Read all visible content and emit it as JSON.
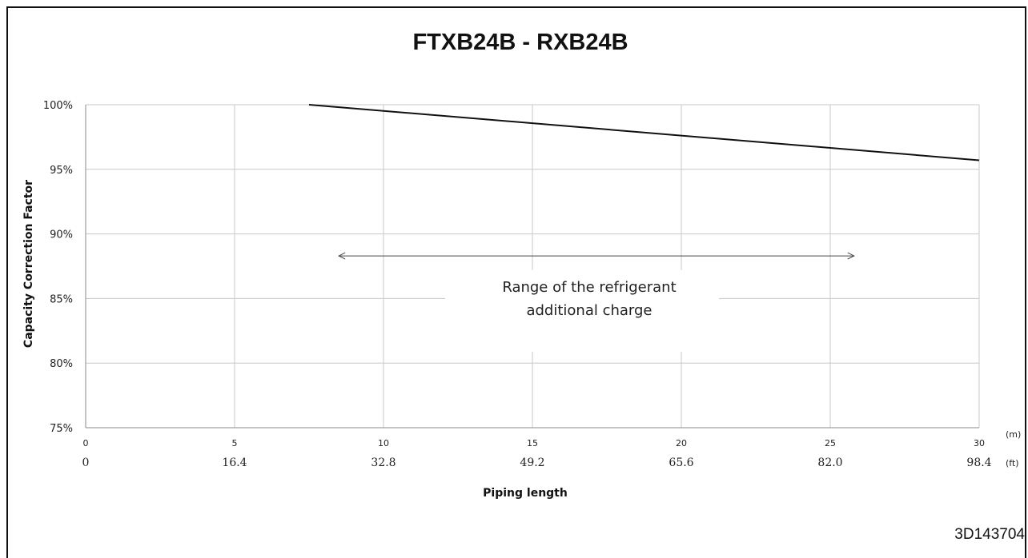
{
  "chart_data": {
    "type": "line",
    "title": "FTXB24B - RXB24B",
    "ylabel": "Capacity Correction Factor",
    "xlabel": "Piping length",
    "x_unit_primary": "(m)",
    "x_unit_secondary": "(ft)",
    "xlim": [
      0,
      30
    ],
    "ylim": [
      75,
      100
    ],
    "x_ticks": [
      0,
      5,
      10,
      15,
      20,
      25,
      30
    ],
    "x_ticks_ft": [
      "0",
      "16.4",
      "32.8",
      "49.2",
      "65.6",
      "82.0",
      "98.4"
    ],
    "y_ticks": [
      75,
      80,
      85,
      90,
      95,
      100
    ],
    "y_tick_labels": [
      "75%",
      "80%",
      "85%",
      "90%",
      "95%",
      "100%"
    ],
    "grid": true,
    "series": [
      {
        "x": [
          7.5,
          30
        ],
        "y": [
          100,
          95.7
        ],
        "color": "#111111"
      }
    ],
    "annotation": {
      "lines": [
        "Range of the refrigerant",
        "additional charge"
      ],
      "arrow_x_range": [
        8.5,
        25.8
      ],
      "arrow_y": 88.3
    }
  },
  "footer_code": "3D143704"
}
